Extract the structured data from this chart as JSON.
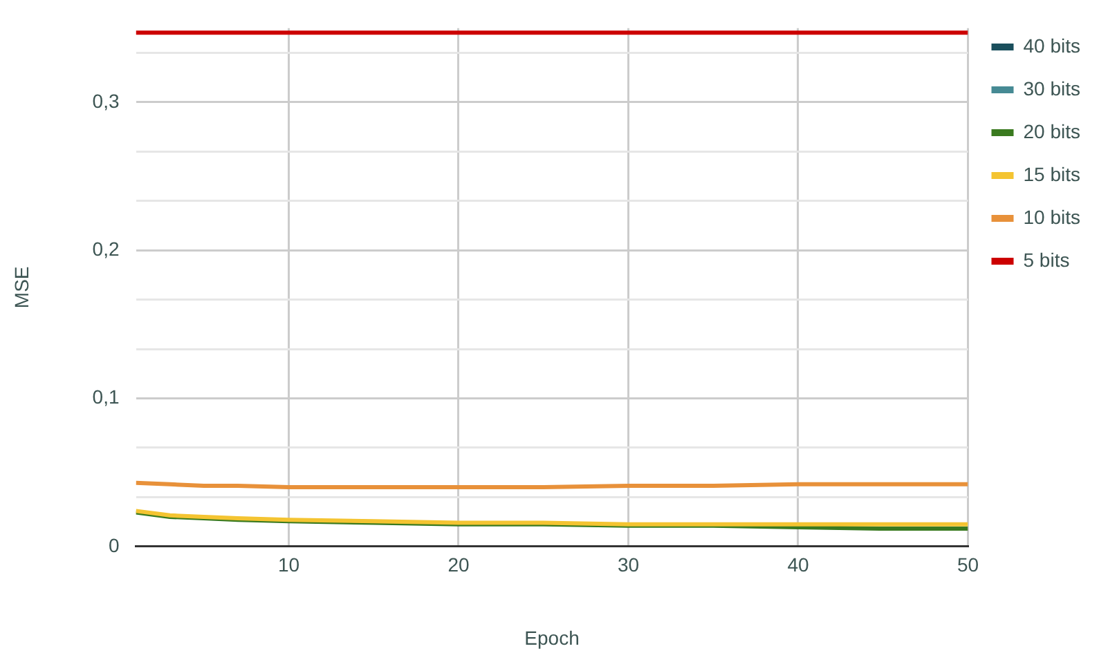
{
  "chart_data": {
    "type": "line",
    "xlabel": "Epoch",
    "ylabel": "MSE",
    "x": [
      1,
      3,
      5,
      7,
      10,
      15,
      20,
      25,
      30,
      35,
      40,
      45,
      50
    ],
    "series": [
      {
        "name": "40 bits",
        "color": "#1a4f5c",
        "values": [
          null,
          null,
          null,
          null,
          null,
          null,
          null,
          null,
          null,
          null,
          null,
          null,
          null
        ]
      },
      {
        "name": "30 bits",
        "color": "#468a94",
        "values": [
          null,
          null,
          null,
          null,
          null,
          null,
          null,
          null,
          null,
          null,
          null,
          null,
          null
        ]
      },
      {
        "name": "20 bits",
        "color": "#3a7a1f",
        "values": [
          0.023,
          0.02,
          0.019,
          0.018,
          0.017,
          0.016,
          0.015,
          0.015,
          0.014,
          0.014,
          0.013,
          0.012,
          0.012
        ]
      },
      {
        "name": "15 bits",
        "color": "#f4c431",
        "values": [
          0.024,
          0.021,
          0.02,
          0.019,
          0.018,
          0.017,
          0.016,
          0.016,
          0.015,
          0.015,
          0.015,
          0.015,
          0.015
        ]
      },
      {
        "name": "10 bits",
        "color": "#e8913a",
        "values": [
          0.043,
          0.042,
          0.041,
          0.041,
          0.04,
          0.04,
          0.04,
          0.04,
          0.041,
          0.041,
          0.042,
          0.042,
          0.042
        ]
      },
      {
        "name": "5 bits",
        "color": "#cc0000",
        "values": [
          0.347,
          0.347,
          0.347,
          0.347,
          0.347,
          0.347,
          0.347,
          0.347,
          0.347,
          0.347,
          0.347,
          0.347,
          0.347
        ]
      }
    ],
    "xlim": [
      1,
      50
    ],
    "xticks": [
      10,
      20,
      30,
      40,
      50
    ],
    "ylim": [
      0,
      0.35
    ],
    "yticks": [
      0,
      {
        "value": 0.0333,
        "label": null
      },
      {
        "value": 0.0667,
        "label": null
      },
      {
        "value": 0.1,
        "label": "0,1"
      },
      {
        "value": 0.1333,
        "label": null
      },
      {
        "value": 0.1667,
        "label": null
      },
      {
        "value": 0.2,
        "label": "0,2"
      },
      {
        "value": 0.2333,
        "label": null
      },
      {
        "value": 0.2667,
        "label": null
      },
      {
        "value": 0.3,
        "label": "0,3"
      },
      {
        "value": 0.3333,
        "label": null
      }
    ],
    "grid": true,
    "legend": "top right",
    "marker": "none",
    "line_style": "solid"
  }
}
